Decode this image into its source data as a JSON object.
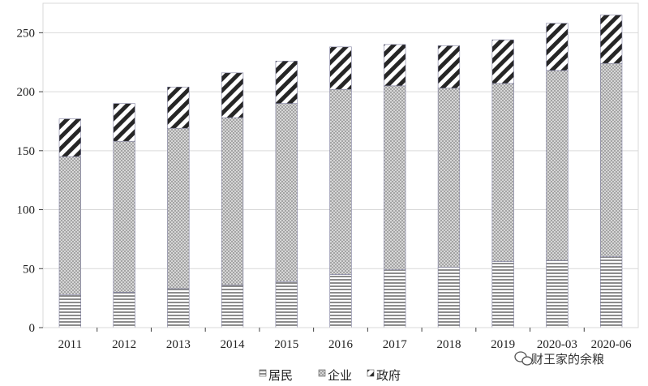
{
  "chart_data": {
    "type": "bar",
    "stacked": true,
    "categories": [
      "2011",
      "2012",
      "2013",
      "2014",
      "2015",
      "2016",
      "2017",
      "2018",
      "2019",
      "2020-03",
      "2020-06"
    ],
    "series": [
      {
        "name": "居民",
        "pattern": "horizontal-lines",
        "values": [
          28,
          30,
          33,
          36,
          39,
          45,
          49,
          51,
          56,
          57,
          60
        ]
      },
      {
        "name": "企业",
        "pattern": "crosshatch",
        "values": [
          117,
          128,
          136,
          142,
          151,
          157,
          156,
          152,
          151,
          161,
          164
        ]
      },
      {
        "name": "政府",
        "pattern": "diagonal-stripes",
        "values": [
          32,
          32,
          35,
          38,
          36,
          36,
          35,
          36,
          37,
          40,
          41
        ]
      }
    ],
    "ylim": [
      0,
      275
    ],
    "yticks": [
      0,
      50,
      100,
      150,
      200,
      250
    ],
    "ytick_labels": [
      "0",
      "50",
      "100",
      "150",
      "200",
      "250"
    ],
    "grid": true,
    "legend_position": "bottom-center",
    "title": "",
    "xlabel": "",
    "ylabel": ""
  },
  "watermark": {
    "text": "财王家的余粮"
  },
  "colors": {
    "grid": "#d9d9d9",
    "axis": "#404040",
    "bar_edge": "#7f7f9f"
  }
}
